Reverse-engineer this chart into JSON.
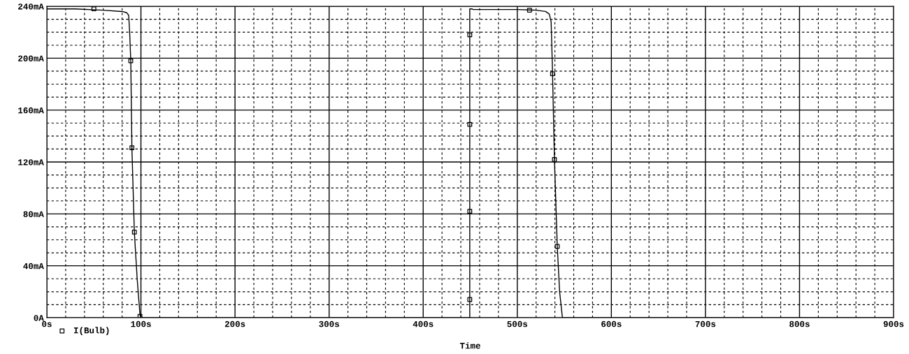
{
  "chart_data": {
    "type": "line",
    "xlabel": "Time",
    "xlim": [
      0,
      900
    ],
    "ylim": [
      0,
      240
    ],
    "xticks": [
      {
        "value": 0,
        "label": "0s"
      },
      {
        "value": 20,
        "label": null
      },
      {
        "value": 40,
        "label": null
      },
      {
        "value": 60,
        "label": null
      },
      {
        "value": 80,
        "label": null
      },
      {
        "value": 100,
        "label": "100s"
      },
      {
        "value": 120,
        "label": null
      },
      {
        "value": 140,
        "label": null
      },
      {
        "value": 160,
        "label": null
      },
      {
        "value": 180,
        "label": null
      },
      {
        "value": 200,
        "label": "200s"
      },
      {
        "value": 220,
        "label": null
      },
      {
        "value": 240,
        "label": null
      },
      {
        "value": 260,
        "label": null
      },
      {
        "value": 280,
        "label": null
      },
      {
        "value": 300,
        "label": "300s"
      },
      {
        "value": 320,
        "label": null
      },
      {
        "value": 340,
        "label": null
      },
      {
        "value": 360,
        "label": null
      },
      {
        "value": 380,
        "label": null
      },
      {
        "value": 400,
        "label": "400s"
      },
      {
        "value": 420,
        "label": null
      },
      {
        "value": 440,
        "label": null
      },
      {
        "value": 460,
        "label": null
      },
      {
        "value": 480,
        "label": null
      },
      {
        "value": 500,
        "label": "500s"
      },
      {
        "value": 520,
        "label": null
      },
      {
        "value": 540,
        "label": null
      },
      {
        "value": 560,
        "label": null
      },
      {
        "value": 580,
        "label": null
      },
      {
        "value": 600,
        "label": "600s"
      },
      {
        "value": 620,
        "label": null
      },
      {
        "value": 640,
        "label": null
      },
      {
        "value": 660,
        "label": null
      },
      {
        "value": 680,
        "label": null
      },
      {
        "value": 700,
        "label": "700s"
      },
      {
        "value": 720,
        "label": null
      },
      {
        "value": 740,
        "label": null
      },
      {
        "value": 760,
        "label": null
      },
      {
        "value": 780,
        "label": null
      },
      {
        "value": 800,
        "label": "800s"
      },
      {
        "value": 820,
        "label": null
      },
      {
        "value": 840,
        "label": null
      },
      {
        "value": 860,
        "label": null
      },
      {
        "value": 880,
        "label": null
      },
      {
        "value": 900,
        "label": "900s"
      }
    ],
    "yticks": [
      {
        "value": 0,
        "label": "0A"
      },
      {
        "value": 10,
        "label": null
      },
      {
        "value": 20,
        "label": null
      },
      {
        "value": 30,
        "label": null
      },
      {
        "value": 40,
        "label": "40mA"
      },
      {
        "value": 50,
        "label": null
      },
      {
        "value": 60,
        "label": null
      },
      {
        "value": 70,
        "label": null
      },
      {
        "value": 80,
        "label": "80mA"
      },
      {
        "value": 90,
        "label": null
      },
      {
        "value": 100,
        "label": null
      },
      {
        "value": 110,
        "label": null
      },
      {
        "value": 120,
        "label": "120mA"
      },
      {
        "value": 130,
        "label": null
      },
      {
        "value": 140,
        "label": null
      },
      {
        "value": 150,
        "label": null
      },
      {
        "value": 160,
        "label": "160mA"
      },
      {
        "value": 170,
        "label": null
      },
      {
        "value": 180,
        "label": null
      },
      {
        "value": 190,
        "label": null
      },
      {
        "value": 200,
        "label": "200mA"
      },
      {
        "value": 210,
        "label": null
      },
      {
        "value": 220,
        "label": null
      },
      {
        "value": 230,
        "label": null
      },
      {
        "value": 240,
        "label": "240mA"
      }
    ],
    "grid": true,
    "legend": "bottom left",
    "series": [
      {
        "color": "#000000",
        "marker": "none",
        "x": [
          0,
          30,
          60,
          80,
          85,
          87,
          88,
          89.2,
          90.4,
          93,
          96,
          99,
          100,
          449.5,
          449.5,
          452,
          453,
          500,
          520,
          530,
          534,
          536,
          537.5,
          539.5,
          542.5,
          545,
          548,
          900
        ],
        "values": [
          238,
          238,
          237,
          236,
          235,
          233,
          220,
          198,
          131,
          66,
          30,
          2,
          0,
          0,
          238,
          238,
          237.5,
          237.5,
          237,
          236,
          234,
          228,
          188,
          122,
          55,
          20,
          0,
          0
        ]
      },
      {
        "type": "scatter",
        "name": "I(Bulb)",
        "color": "#000000",
        "marker": "square",
        "x": [
          50,
          89.2,
          90.4,
          93,
          99,
          449.5,
          449.5,
          449.5,
          449.5,
          513,
          537.5,
          539.5,
          542.5
        ],
        "values": [
          238,
          198,
          131,
          66,
          1,
          218,
          149,
          82,
          14,
          237,
          188,
          122,
          55
        ]
      }
    ]
  }
}
